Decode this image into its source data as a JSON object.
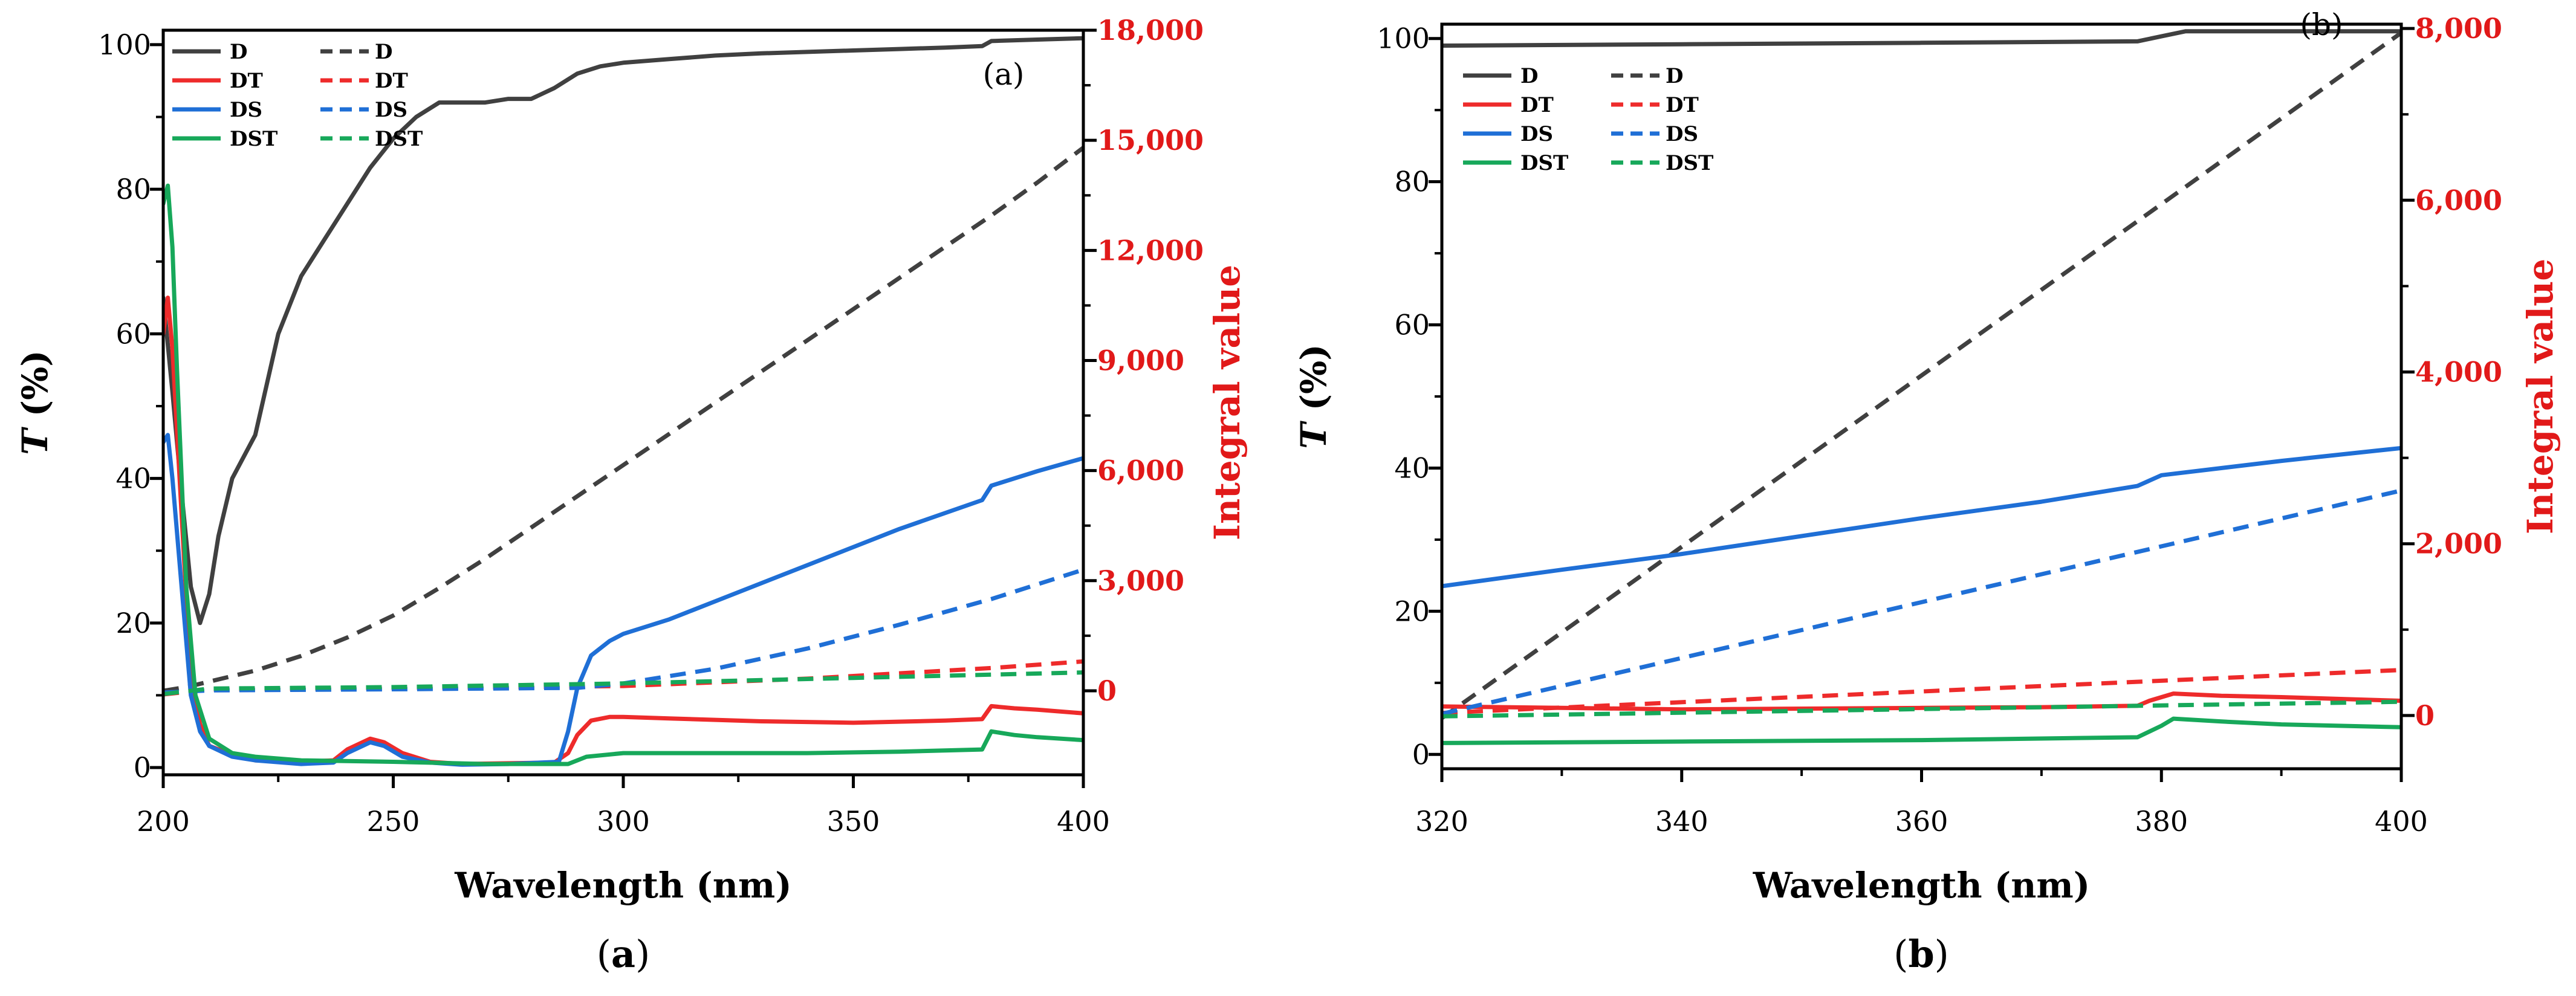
{
  "figure": {
    "colors": {
      "D": "#404040",
      "DT": "#ee2b2b",
      "DS": "#1f6fd6",
      "DST": "#17a85a",
      "integral_axis": "#e11919",
      "axis": "#000000"
    }
  },
  "chart_data": [
    {
      "id": "a",
      "type": "line",
      "panel_label": "(a)",
      "caption": "(a)",
      "xlabel": "Wavelength (nm)",
      "ylabel": "T (%)",
      "ylabel_parts": {
        "italic": "T",
        "rest": " (%)"
      },
      "y2label": "Integral  value",
      "xlim": [
        200,
        400
      ],
      "ylim": [
        -1,
        102
      ],
      "y2lim": [
        -2290,
        18000
      ],
      "xticks": [
        200,
        250,
        300,
        350,
        400
      ],
      "xtick_labels": [
        "200",
        "250",
        "300",
        "350",
        "400"
      ],
      "yticks": [
        0,
        20,
        40,
        60,
        80,
        100
      ],
      "ytick_labels": [
        "0",
        "20",
        "40",
        "60",
        "80",
        "100"
      ],
      "y2ticks": [
        0,
        3000,
        6000,
        9000,
        12000,
        15000,
        18000
      ],
      "y2tick_labels": [
        "0",
        "3,000",
        "6,000",
        "9,000",
        "12,000",
        "15,000",
        "18,000"
      ],
      "legend": {
        "placement": "top-left",
        "entries": [
          {
            "label": "D",
            "series": "D"
          },
          {
            "label": "DT",
            "series": "DT"
          },
          {
            "label": "DS",
            "series": "DS"
          },
          {
            "label": "DST",
            "series": "DST"
          }
        ]
      },
      "series": [
        {
          "name": "D",
          "axis": "left",
          "style": "solid",
          "x": [
            200,
            202,
            204,
            206,
            208,
            210,
            212,
            215,
            220,
            225,
            230,
            235,
            240,
            245,
            250,
            255,
            260,
            265,
            270,
            275,
            280,
            285,
            290,
            295,
            300,
            310,
            320,
            330,
            340,
            350,
            360,
            370,
            378,
            380,
            390,
            400
          ],
          "y": [
            65,
            52,
            38,
            25,
            20,
            24,
            32,
            40,
            46,
            60,
            68,
            73,
            78,
            83,
            87,
            90,
            92,
            92,
            92,
            92.5,
            92.5,
            94,
            96,
            97,
            97.5,
            98,
            98.5,
            98.8,
            99,
            99.2,
            99.4,
            99.6,
            99.8,
            100.5,
            100.7,
            100.9
          ]
        },
        {
          "name": "D",
          "axis": "right",
          "style": "dashed",
          "x": [
            200,
            205,
            210,
            220,
            230,
            240,
            250,
            260,
            270,
            280,
            290,
            300,
            310,
            320,
            330,
            340,
            350,
            360,
            370,
            380,
            390,
            400
          ],
          "y": [
            0,
            100,
            250,
            550,
            950,
            1450,
            2050,
            2800,
            3600,
            4450,
            5300,
            6150,
            7000,
            7850,
            8700,
            9550,
            10400,
            11250,
            12100,
            12950,
            13850,
            14800
          ]
        },
        {
          "name": "DT",
          "axis": "left",
          "style": "solid",
          "x": [
            200,
            201,
            202,
            204,
            206,
            208,
            210,
            215,
            220,
            230,
            237,
            240,
            245,
            248,
            252,
            258,
            265,
            275,
            285,
            288,
            290,
            293,
            297,
            300,
            310,
            330,
            350,
            370,
            378,
            380,
            385,
            390,
            400
          ],
          "y": [
            60,
            65,
            58,
            35,
            12,
            6,
            3,
            1.8,
            1,
            0.8,
            1,
            2.5,
            4,
            3.5,
            2,
            0.8,
            0.5,
            0.6,
            0.7,
            2,
            4.5,
            6.5,
            7,
            7,
            6.8,
            6.4,
            6.2,
            6.5,
            6.7,
            8.5,
            8.2,
            8,
            7.5
          ]
        },
        {
          "name": "DT",
          "axis": "right",
          "style": "dashed",
          "x": [
            200,
            210,
            250,
            280,
            300,
            340,
            380,
            400
          ],
          "y": [
            -100,
            30,
            80,
            100,
            130,
            330,
            620,
            800
          ]
        },
        {
          "name": "DS",
          "axis": "left",
          "style": "solid",
          "x": [
            200,
            201,
            202,
            204,
            206,
            208,
            210,
            215,
            220,
            230,
            237,
            240,
            245,
            248,
            252,
            258,
            265,
            275,
            286,
            288,
            290,
            293,
            297,
            300,
            310,
            320,
            340,
            360,
            378,
            380,
            390,
            400
          ],
          "y": [
            45,
            46,
            40,
            25,
            10,
            5,
            3,
            1.5,
            1,
            0.5,
            0.7,
            2,
            3.5,
            3,
            1.5,
            0.7,
            0.4,
            0.5,
            0.8,
            5,
            11,
            15.5,
            17.5,
            18.5,
            20.5,
            23,
            28,
            33,
            37,
            39,
            41,
            42.8
          ]
        },
        {
          "name": "DS",
          "axis": "right",
          "style": "dashed",
          "x": [
            200,
            210,
            250,
            290,
            300,
            320,
            340,
            360,
            380,
            400
          ],
          "y": [
            -50,
            10,
            40,
            80,
            200,
            600,
            1150,
            1800,
            2500,
            3300
          ]
        },
        {
          "name": "DST",
          "axis": "left",
          "style": "solid",
          "x": [
            200,
            201,
            202,
            203,
            205,
            207,
            210,
            215,
            220,
            230,
            250,
            270,
            288,
            292,
            300,
            320,
            340,
            360,
            378,
            380,
            385,
            390,
            400
          ],
          "y": [
            78,
            80.5,
            72,
            55,
            25,
            10,
            4,
            2,
            1.5,
            1,
            0.8,
            0.5,
            0.5,
            1.5,
            2,
            2,
            2,
            2.2,
            2.5,
            5,
            4.5,
            4.2,
            3.8
          ]
        },
        {
          "name": "DST",
          "axis": "right",
          "style": "dashed",
          "x": [
            200,
            210,
            250,
            300,
            350,
            400
          ],
          "y": [
            -90,
            60,
            100,
            200,
            350,
            500
          ]
        }
      ]
    },
    {
      "id": "b",
      "type": "line",
      "panel_label": "(b)",
      "caption": "(b)",
      "xlabel": "Wavelength (nm)",
      "ylabel": "T (%)",
      "ylabel_parts": {
        "italic": "T",
        "rest": " (%)"
      },
      "y2label": "Integral  value",
      "xlim": [
        320,
        400
      ],
      "ylim": [
        -2,
        102
      ],
      "y2lim": [
        -620,
        8050
      ],
      "xticks": [
        320,
        340,
        360,
        380,
        400
      ],
      "xtick_labels": [
        "320",
        "340",
        "360",
        "380",
        "400"
      ],
      "yticks": [
        0,
        20,
        40,
        60,
        80,
        100
      ],
      "ytick_labels": [
        "0",
        "20",
        "40",
        "60",
        "80",
        "100"
      ],
      "y2ticks": [
        0,
        2000,
        4000,
        6000,
        8000
      ],
      "y2tick_labels": [
        "0",
        "2,000",
        "4,000",
        "6,000",
        "8,000"
      ],
      "legend": {
        "placement": "top-left",
        "entries": [
          {
            "label": "D",
            "series": "D"
          },
          {
            "label": "DT",
            "series": "DT"
          },
          {
            "label": "DS",
            "series": "DS"
          },
          {
            "label": "DST",
            "series": "DST"
          }
        ]
      },
      "series": [
        {
          "name": "D",
          "axis": "left",
          "style": "solid",
          "x": [
            320,
            340,
            360,
            378,
            380,
            382,
            390,
            400
          ],
          "y": [
            99,
            99.2,
            99.4,
            99.6,
            100.3,
            101,
            101,
            101
          ]
        },
        {
          "name": "D",
          "axis": "right",
          "style": "dashed",
          "x": [
            320,
            400
          ],
          "y": [
            -30,
            7950
          ]
        },
        {
          "name": "DT",
          "axis": "left",
          "style": "solid",
          "x": [
            320,
            330,
            340,
            360,
            370,
            378,
            379,
            381,
            385,
            390,
            400
          ],
          "y": [
            6.7,
            6.5,
            6.3,
            6.5,
            6.6,
            6.8,
            7.5,
            8.5,
            8.2,
            8,
            7.5
          ]
        },
        {
          "name": "DT",
          "axis": "right",
          "style": "dashed",
          "x": [
            320,
            400
          ],
          "y": [
            30,
            530
          ]
        },
        {
          "name": "DS",
          "axis": "left",
          "style": "solid",
          "x": [
            320,
            330,
            340,
            350,
            360,
            370,
            378,
            380,
            390,
            400
          ],
          "y": [
            23.5,
            25.8,
            28,
            30.5,
            33,
            35.3,
            37.5,
            39,
            41,
            42.8
          ]
        },
        {
          "name": "DS",
          "axis": "right",
          "style": "dashed",
          "x": [
            320,
            400
          ],
          "y": [
            20,
            2620
          ]
        },
        {
          "name": "DST",
          "axis": "left",
          "style": "solid",
          "x": [
            320,
            340,
            360,
            378,
            380,
            381,
            385,
            390,
            400
          ],
          "y": [
            1.6,
            1.8,
            2,
            2.4,
            4,
            5,
            4.6,
            4.2,
            3.8
          ]
        },
        {
          "name": "DST",
          "axis": "right",
          "style": "dashed",
          "x": [
            320,
            400
          ],
          "y": [
            -10,
            160
          ]
        }
      ]
    }
  ]
}
